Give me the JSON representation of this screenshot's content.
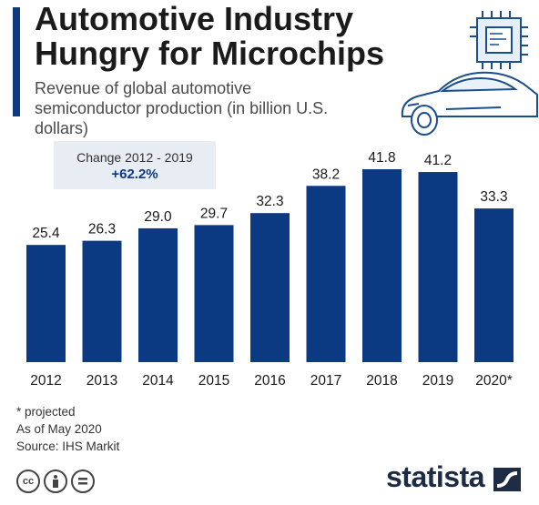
{
  "header": {
    "title_line1": "Automotive Industry",
    "title_line2": "Hungry for Microchips",
    "subtitle": "Revenue of global automotive semiconductor production (in billion U.S. dollars)"
  },
  "change_box": {
    "label": "Change 2012 - 2019",
    "value": "+62.2%"
  },
  "chart_data": {
    "type": "bar",
    "title": "Automotive Industry Hungry for Microchips",
    "subtitle": "Revenue of global automotive semiconductor production (in billion U.S. dollars)",
    "categories": [
      "2012",
      "2013",
      "2014",
      "2015",
      "2016",
      "2017",
      "2018",
      "2019",
      "2020*"
    ],
    "values": [
      25.4,
      26.3,
      29.0,
      29.7,
      32.3,
      38.2,
      41.8,
      41.2,
      33.3
    ],
    "value_labels": [
      "25.4",
      "26.3",
      "29.0",
      "29.7",
      "32.3",
      "38.2",
      "41.8",
      "41.2",
      "33.3"
    ],
    "xlabel": "",
    "ylabel": "",
    "ylim": [
      0,
      41.8
    ],
    "grid": false,
    "bar_color": "#0b3a82"
  },
  "notes": {
    "projected": "* projected",
    "as_of": "As of May 2020",
    "source": "Source: IHS Markit"
  },
  "footer": {
    "brand": "statista",
    "icons": [
      "cc-icon",
      "attribution-icon",
      "no-derivatives-icon"
    ]
  },
  "colors": {
    "accent": "#0b3a82",
    "box_bg": "#e8edf4"
  }
}
